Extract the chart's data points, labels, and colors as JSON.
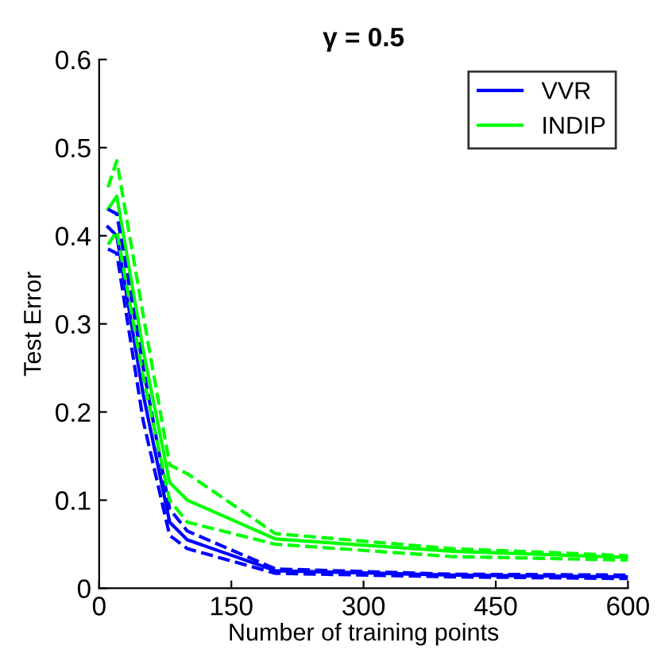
{
  "chart_data": {
    "type": "line",
    "title": "γ = 0.5",
    "xlabel": "Number of training points",
    "ylabel": "Test Error",
    "x": [
      10,
      20,
      50,
      80,
      100,
      200,
      400,
      600
    ],
    "series": [
      {
        "name": "VVR",
        "color": "#0000ff",
        "values": [
          0.41,
          0.4,
          0.22,
          0.075,
          0.055,
          0.02,
          0.015,
          0.013
        ]
      },
      {
        "name": "INDIP",
        "color": "#00ff00",
        "values": [
          0.43,
          0.445,
          0.27,
          0.12,
          0.1,
          0.056,
          0.042,
          0.035
        ]
      },
      {
        "color": "#0000ff",
        "line_style": "dashed",
        "values": [
          0.385,
          0.38,
          0.19,
          0.06,
          0.045,
          0.017,
          0.013,
          0.011
        ]
      },
      {
        "color": "#0000ff",
        "line_style": "dashed",
        "values": [
          0.43,
          0.425,
          0.25,
          0.09,
          0.065,
          0.022,
          0.016,
          0.015
        ]
      },
      {
        "color": "#00ff00",
        "line_style": "dashed",
        "values": [
          0.39,
          0.405,
          0.24,
          0.1,
          0.075,
          0.05,
          0.036,
          0.032
        ]
      },
      {
        "color": "#00ff00",
        "line_style": "dashed",
        "values": [
          0.455,
          0.485,
          0.31,
          0.14,
          0.13,
          0.062,
          0.045,
          0.037
        ]
      }
    ],
    "xlim": [
      0,
      600
    ],
    "xticks": [
      0,
      150,
      300,
      450,
      600
    ],
    "ylim": [
      0,
      0.6
    ],
    "yticks": [
      0,
      0.1,
      0.2,
      0.3,
      0.4,
      0.5,
      0.6
    ],
    "legend": "top right",
    "grid": false,
    "line_style": "solid",
    "marker": "none"
  }
}
